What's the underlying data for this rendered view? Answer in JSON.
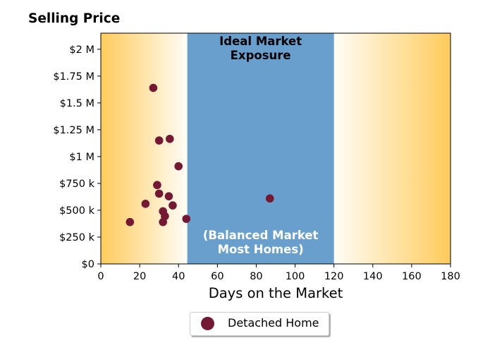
{
  "chart_data": {
    "type": "scatter",
    "title": "Selling Price",
    "xlabel": "Days on the Market",
    "ylabel": "",
    "xlim": [
      0,
      180
    ],
    "ylim": [
      0,
      2150000
    ],
    "grid": false,
    "legend_placement": "bottom-center",
    "x_ticks": [
      0,
      20,
      40,
      60,
      80,
      100,
      120,
      140,
      160,
      180
    ],
    "x_tick_labels": [
      "0",
      "20",
      "40",
      "60",
      "80",
      "100",
      "120",
      "140",
      "160",
      "180"
    ],
    "y_ticks": [
      0,
      250000,
      500000,
      750000,
      1000000,
      1250000,
      1500000,
      1750000,
      2000000
    ],
    "y_tick_labels": [
      "$0",
      "$250 k",
      "$500 k",
      "$750 k",
      "$1 M",
      "$1.25 M",
      "$1.5 M",
      "$1.75 M",
      "$2 M"
    ],
    "band": {
      "x_range": [
        44.5,
        120
      ],
      "color": "#689fcc",
      "top_label_lines": [
        "Ideal Market",
        "Exposure"
      ],
      "bottom_label_lines": [
        "(Balanced Market",
        "Most Homes)"
      ]
    },
    "gradient_colors": {
      "edge": "#ffcb5c",
      "center": "#fffdf7"
    },
    "series": [
      {
        "name": "Detached Home",
        "color": "#751833",
        "x": [
          15,
          23,
          27,
          29,
          30,
          30,
          32,
          32,
          33,
          35,
          35.5,
          37,
          40,
          44,
          87
        ],
        "y": [
          390000,
          560000,
          1640000,
          735000,
          655000,
          1150000,
          390000,
          490000,
          445000,
          630000,
          1165000,
          545000,
          910000,
          420000,
          610000
        ]
      }
    ]
  }
}
